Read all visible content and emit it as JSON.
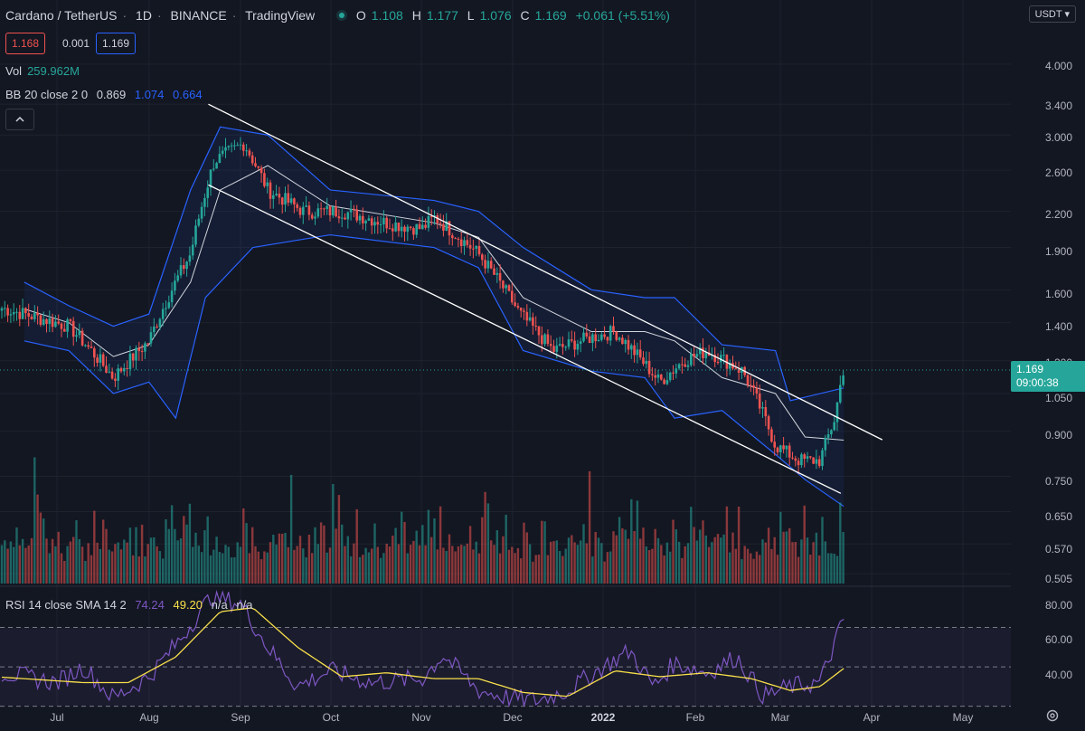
{
  "header": {
    "symbol": "Cardano / TetherUS",
    "interval": "1D",
    "exchange": "BINANCE",
    "source": "TradingView",
    "ohlc": {
      "o_label": "O",
      "o": "1.108",
      "h_label": "H",
      "h": "1.177",
      "l_label": "L",
      "l": "1.076",
      "c_label": "C",
      "c": "1.169",
      "change": "+0.061 (+5.51%)"
    },
    "bid": "1.168",
    "spread": "0.001",
    "ask": "1.169",
    "currency": "USDT"
  },
  "indicators": {
    "vol": {
      "name": "Vol",
      "value": "259.962M"
    },
    "bb": {
      "name": "BB 20 close 2 0",
      "basis": "0.869",
      "upper": "1.074",
      "lower": "0.664"
    },
    "rsi": {
      "name": "RSI 14 close SMA 14 2",
      "rsi": "74.24",
      "sma": "49.20",
      "na1": "n/a",
      "na2": "n/a"
    }
  },
  "last_price": {
    "price": "1.169",
    "countdown": "09:00:38"
  },
  "colors": {
    "up": "#26a69a",
    "down": "#ef5350",
    "bb": "#2962ff",
    "basis": "#d1d4dc",
    "rsi": "#7e57c2",
    "rsi_sma": "#f9e04b",
    "bg": "#131722"
  },
  "icons": {
    "collapse": "chevron-up-icon",
    "settings": "gear-icon",
    "dropdown": "chevron-down-icon"
  },
  "chart_data": [
    {
      "type": "candlestick",
      "title": "Cardano / TetherUS · 1D · BINANCE",
      "x_ticks": [
        "Jul",
        "Aug",
        "Sep",
        "Oct",
        "Nov",
        "Dec",
        "2022",
        "Feb",
        "Mar",
        "Apr",
        "May"
      ],
      "y_ticks": [
        "4.000",
        "3.400",
        "3.000",
        "2.600",
        "2.200",
        "1.900",
        "1.600",
        "1.400",
        "1.200",
        "1.050",
        "0.900",
        "0.750",
        "0.650",
        "0.570",
        "0.505"
      ],
      "y_scale": "log",
      "ylim": [
        0.48,
        4.4
      ],
      "series": [
        {
          "name": "ADAUSDT",
          "x": [
            "2021-06-20",
            "2021-07-05",
            "2021-07-20",
            "2021-08-01",
            "2021-08-15",
            "2021-08-23",
            "2021-09-02",
            "2021-09-10",
            "2021-09-22",
            "2021-10-05",
            "2021-10-20",
            "2021-11-01",
            "2021-11-05",
            "2021-11-20",
            "2021-12-04",
            "2021-12-15",
            "2021-12-28",
            "2022-01-05",
            "2022-01-20",
            "2022-01-28",
            "2022-02-05",
            "2022-02-17",
            "2022-02-28",
            "2022-03-08",
            "2022-03-15",
            "2022-03-20",
            "2022-03-23"
          ],
          "close": [
            1.45,
            1.38,
            1.12,
            1.3,
            1.85,
            2.7,
            2.9,
            2.4,
            2.2,
            2.2,
            2.1,
            2.05,
            2.15,
            1.85,
            1.45,
            1.25,
            1.32,
            1.35,
            1.1,
            1.2,
            1.25,
            1.15,
            0.85,
            0.8,
            0.8,
            0.95,
            1.169
          ]
        }
      ],
      "overlays": [
        {
          "name": "BB upper",
          "points": [
            [
              "2021-06-20",
              1.65
            ],
            [
              "2021-07-05",
              1.5
            ],
            [
              "2021-07-20",
              1.38
            ],
            [
              "2021-08-01",
              1.45
            ],
            [
              "2021-08-15",
              2.4
            ],
            [
              "2021-08-25",
              3.1
            ],
            [
              "2021-09-10",
              3.0
            ],
            [
              "2021-10-01",
              2.4
            ],
            [
              "2021-11-05",
              2.3
            ],
            [
              "2021-11-20",
              2.2
            ],
            [
              "2021-12-05",
              1.9
            ],
            [
              "2021-12-28",
              1.6
            ],
            [
              "2022-01-15",
              1.55
            ],
            [
              "2022-01-25",
              1.55
            ],
            [
              "2022-02-10",
              1.28
            ],
            [
              "2022-02-28",
              1.25
            ],
            [
              "2022-03-05",
              1.02
            ],
            [
              "2022-03-23",
              1.074
            ]
          ]
        },
        {
          "name": "BB basis",
          "points": [
            [
              "2021-06-20",
              1.48
            ],
            [
              "2021-07-05",
              1.4
            ],
            [
              "2021-07-20",
              1.22
            ],
            [
              "2021-08-01",
              1.28
            ],
            [
              "2021-08-15",
              1.65
            ],
            [
              "2021-08-25",
              2.4
            ],
            [
              "2021-09-10",
              2.65
            ],
            [
              "2021-10-01",
              2.25
            ],
            [
              "2021-11-05",
              2.1
            ],
            [
              "2021-11-20",
              1.98
            ],
            [
              "2021-12-05",
              1.55
            ],
            [
              "2021-12-28",
              1.35
            ],
            [
              "2022-01-15",
              1.35
            ],
            [
              "2022-01-25",
              1.3
            ],
            [
              "2022-02-10",
              1.12
            ],
            [
              "2022-02-28",
              1.05
            ],
            [
              "2022-03-10",
              0.88
            ],
            [
              "2022-03-23",
              0.869
            ]
          ]
        },
        {
          "name": "BB lower",
          "points": [
            [
              "2021-06-20",
              1.3
            ],
            [
              "2021-07-05",
              1.25
            ],
            [
              "2021-07-20",
              1.05
            ],
            [
              "2021-08-01",
              1.1
            ],
            [
              "2021-08-10",
              0.95
            ],
            [
              "2021-08-20",
              1.55
            ],
            [
              "2021-09-05",
              1.9
            ],
            [
              "2021-10-01",
              2.0
            ],
            [
              "2021-11-05",
              1.9
            ],
            [
              "2021-11-20",
              1.75
            ],
            [
              "2021-12-05",
              1.25
            ],
            [
              "2021-12-28",
              1.15
            ],
            [
              "2022-01-15",
              1.12
            ],
            [
              "2022-01-25",
              0.95
            ],
            [
              "2022-02-10",
              0.98
            ],
            [
              "2022-02-28",
              0.82
            ],
            [
              "2022-03-10",
              0.74
            ],
            [
              "2022-03-23",
              0.664
            ]
          ]
        },
        {
          "name": "Channel upper",
          "points": [
            [
              "2021-08-21",
              3.4
            ],
            [
              "2022-04-05",
              0.87
            ]
          ]
        },
        {
          "name": "Channel lower",
          "points": [
            [
              "2021-08-21",
              2.45
            ],
            [
              "2022-03-22",
              0.7
            ]
          ]
        }
      ]
    },
    {
      "type": "bar",
      "title": "Vol",
      "values_profile": [
        0.3,
        0.25,
        0.2,
        0.3,
        0.25,
        0.4,
        0.3,
        0.5,
        0.35,
        0.3,
        0.25,
        0.9,
        0.55,
        0.6,
        0.4,
        0.35,
        0.3,
        0.25,
        0.3,
        0.5,
        0.25,
        0.2,
        0.3,
        0.35,
        0.25,
        0.4,
        0.3,
        0.25,
        0.2,
        0.3,
        0.25,
        0.6,
        0.35,
        0.3,
        0.5,
        0.4,
        0.3,
        0.2,
        0.25,
        0.3,
        0.35,
        0.55,
        0.3,
        0.45,
        0.3,
        0.4,
        0.25,
        0.7,
        0.2,
        0.3
      ],
      "last_value": "259.962M"
    },
    {
      "type": "line",
      "title": "RSI 14 close SMA 14 2",
      "y_ticks": [
        "80.00",
        "60.00",
        "40.00"
      ],
      "ylim": [
        28,
        90
      ],
      "bands": [
        70,
        50,
        30
      ],
      "series": [
        {
          "name": "RSI",
          "x": [
            "2021-06-20",
            "2021-07-01",
            "2021-07-10",
            "2021-07-20",
            "2021-08-01",
            "2021-08-12",
            "2021-08-22",
            "2021-09-01",
            "2021-09-10",
            "2021-09-20",
            "2021-10-01",
            "2021-10-15",
            "2021-11-01",
            "2021-11-08",
            "2021-11-20",
            "2021-12-01",
            "2021-12-10",
            "2021-12-20",
            "2022-01-01",
            "2022-01-10",
            "2022-01-18",
            "2022-01-25",
            "2022-02-05",
            "2022-02-15",
            "2022-02-24",
            "2022-03-05",
            "2022-03-15",
            "2022-03-20",
            "2022-03-23"
          ],
          "values": [
            45,
            42,
            50,
            34,
            45,
            65,
            86,
            82,
            60,
            40,
            48,
            42,
            44,
            56,
            38,
            34,
            33,
            38,
            50,
            58,
            40,
            52,
            47,
            55,
            35,
            40,
            42,
            62,
            74.24
          ]
        },
        {
          "name": "SMA",
          "x": [
            "2021-06-20",
            "2021-07-10",
            "2021-07-25",
            "2021-08-10",
            "2021-08-25",
            "2021-09-05",
            "2021-09-20",
            "2021-10-05",
            "2021-10-20",
            "2021-11-05",
            "2021-11-20",
            "2021-12-05",
            "2021-12-20",
            "2022-01-05",
            "2022-01-20",
            "2022-02-05",
            "2022-02-20",
            "2022-03-05",
            "2022-03-15",
            "2022-03-23"
          ],
          "values": [
            44,
            42,
            42,
            55,
            78,
            80,
            60,
            45,
            47,
            44,
            44,
            37,
            35,
            48,
            45,
            47,
            44,
            38,
            40,
            49.2
          ]
        }
      ]
    }
  ]
}
